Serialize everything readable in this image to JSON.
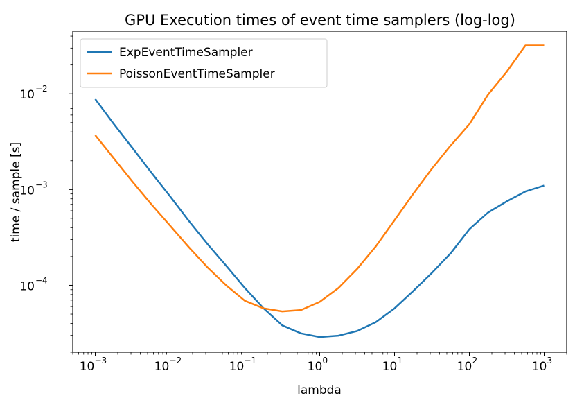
{
  "chart_data": {
    "type": "line",
    "title": "GPU Execution times of event time samplers (log-log)",
    "xlabel": "lambda",
    "ylabel": "time / sample [s]",
    "xscale": "log",
    "yscale": "log",
    "xlim": [
      0.0005,
      2000
    ],
    "ylim": [
      2e-05,
      0.045
    ],
    "grid": false,
    "legend_position": "upper-left",
    "x_ticks": [
      {
        "base": "10",
        "exp": "−3"
      },
      {
        "base": "10",
        "exp": "−2"
      },
      {
        "base": "10",
        "exp": "−1"
      },
      {
        "base": "10",
        "exp": "0"
      },
      {
        "base": "10",
        "exp": "1"
      },
      {
        "base": "10",
        "exp": "2"
      },
      {
        "base": "10",
        "exp": "3"
      }
    ],
    "y_ticks": [
      {
        "base": "10",
        "exp": "−4"
      },
      {
        "base": "10",
        "exp": "−3"
      },
      {
        "base": "10",
        "exp": "−2"
      }
    ],
    "x": [
      0.001,
      0.00178,
      0.00316,
      0.00562,
      0.01,
      0.0178,
      0.0316,
      0.0562,
      0.1,
      0.178,
      0.316,
      0.562,
      1.0,
      1.78,
      3.16,
      5.62,
      10,
      17.8,
      31.6,
      56.2,
      100,
      178,
      316,
      562,
      1000
    ],
    "series": [
      {
        "name": "ExpEventTimeSampler",
        "color": "#1f77b4",
        "values": [
          0.0088,
          0.0048,
          0.0027,
          0.0015,
          0.00085,
          0.00047,
          0.00027,
          0.00016,
          9.36e-05,
          5.75e-05,
          3.81e-05,
          3.15e-05,
          2.88e-05,
          2.98e-05,
          3.33e-05,
          4.12e-05,
          5.75e-05,
          8.71e-05,
          0.000135,
          0.000216,
          0.000385,
          0.000575,
          0.000752,
          0.000955,
          0.0011
        ]
      },
      {
        "name": "PoissonEventTimeSampler",
        "color": "#ff7f0e",
        "values": [
          0.0037,
          0.0021,
          0.0012,
          0.0007,
          0.00042,
          0.00025,
          0.000154,
          0.0001,
          6.89e-05,
          5.75e-05,
          5.34e-05,
          5.52e-05,
          6.71e-05,
          9.36e-05,
          0.000148,
          0.000255,
          0.000478,
          0.000903,
          0.00165,
          0.00288,
          0.0048,
          0.0098,
          0.017,
          0.032,
          0.032
        ]
      }
    ]
  }
}
